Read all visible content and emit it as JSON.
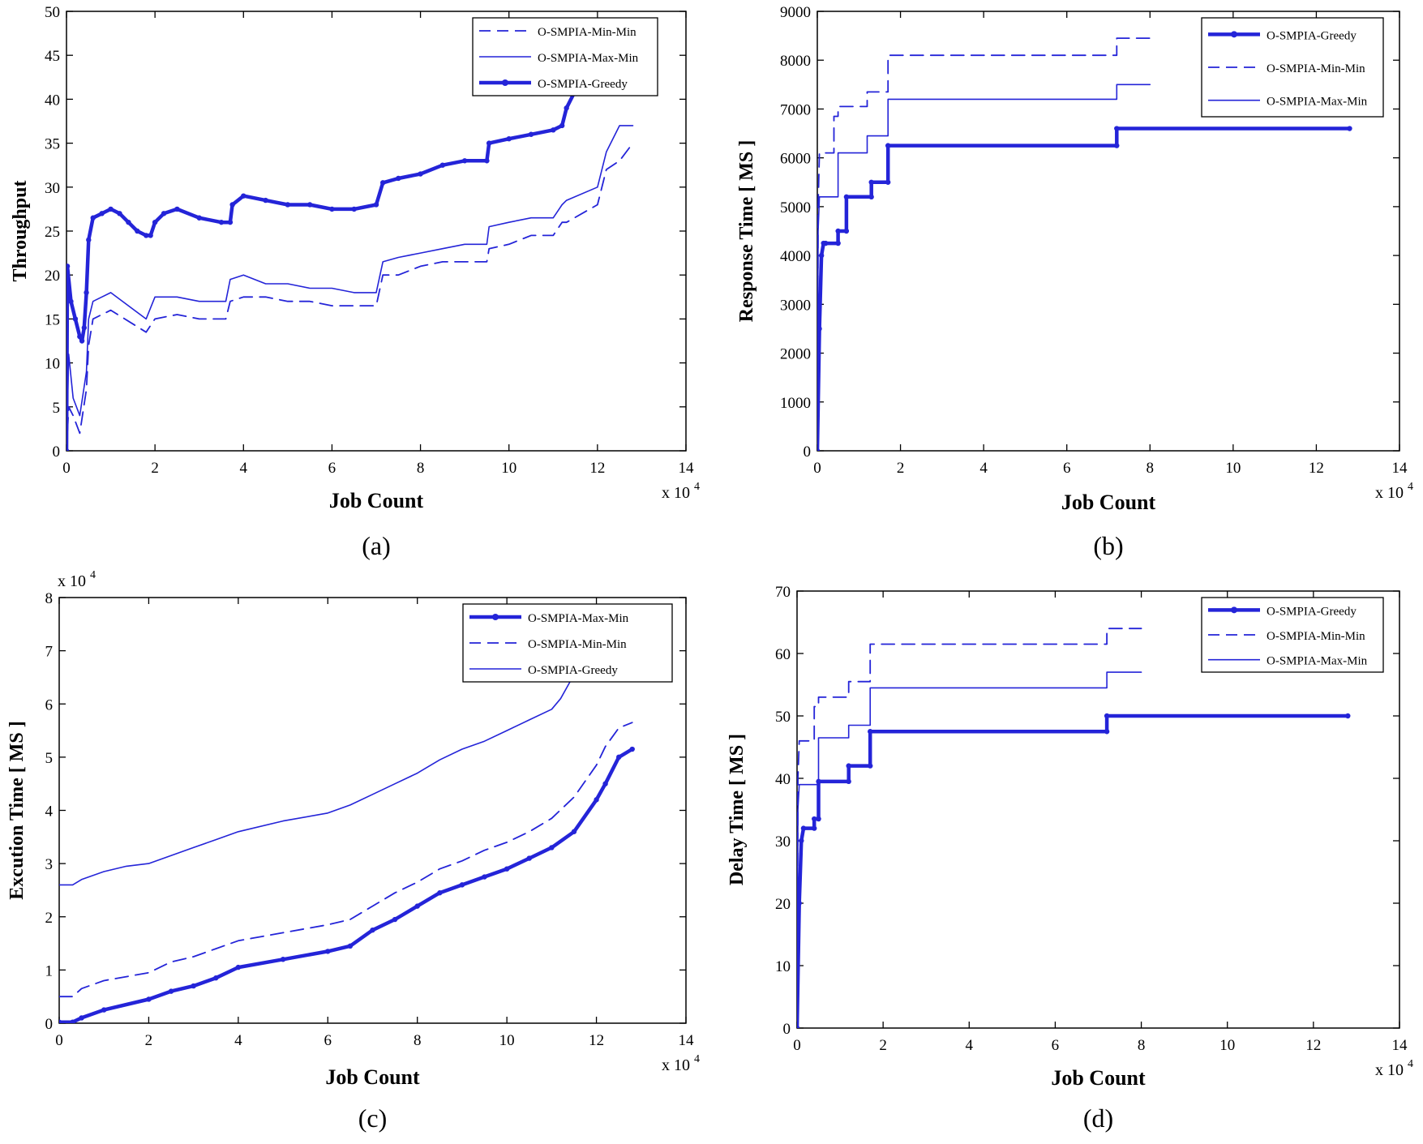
{
  "colors": {
    "line": "#2424d8",
    "axis": "#000000",
    "background": "#ffffff"
  },
  "chart_data": [
    {
      "panel_label": "(a)",
      "type": "line",
      "title": "",
      "xlabel": "Job Count",
      "ylabel": "Throughput",
      "x_exponent": "x 10",
      "x_exponent_power": "4",
      "y_exponent": "",
      "y_exponent_power": "",
      "xlim": [
        0,
        14
      ],
      "ylim": [
        0,
        50
      ],
      "xticks": [
        0,
        2,
        4,
        6,
        8,
        10,
        12,
        14
      ],
      "yticks": [
        0,
        5,
        10,
        15,
        20,
        25,
        30,
        35,
        40,
        45,
        50
      ],
      "legend_position": "top-right",
      "legend": [
        {
          "name": "O-SMPIA-Min-Min",
          "style": "dashed"
        },
        {
          "name": "O-SMPIA-Max-Min",
          "style": "solid"
        },
        {
          "name": "O-SMPIA-Greedy",
          "style": "dotted-thick"
        }
      ],
      "series": [
        {
          "name": "O-SMPIA-Min-Min",
          "style": "dashed",
          "x": [
            0,
            0.05,
            0.15,
            0.3,
            0.45,
            0.5,
            0.6,
            1.0,
            1.8,
            2.0,
            2.5,
            3.0,
            3.6,
            3.7,
            4.0,
            4.5,
            5.0,
            5.5,
            6.0,
            6.5,
            7.0,
            7.15,
            7.5,
            8.0,
            8.5,
            9.0,
            9.5,
            9.55,
            10.0,
            10.5,
            11.0,
            11.2,
            11.3,
            12.0,
            12.2,
            12.5,
            12.8
          ],
          "y": [
            0,
            5,
            4,
            2,
            7,
            12,
            15,
            16,
            13.5,
            15,
            15.5,
            15,
            15,
            17,
            17.5,
            17.5,
            17,
            17,
            16.5,
            16.5,
            16.5,
            20,
            20,
            21,
            21.5,
            21.5,
            21.5,
            23,
            23.5,
            24.5,
            24.5,
            26,
            26,
            28,
            32,
            33,
            35
          ]
        },
        {
          "name": "O-SMPIA-Max-Min",
          "style": "solid",
          "x": [
            0,
            0.05,
            0.15,
            0.3,
            0.45,
            0.5,
            0.6,
            1.0,
            1.8,
            2.0,
            2.5,
            3.0,
            3.6,
            3.7,
            4.0,
            4.5,
            5.0,
            5.5,
            6.0,
            6.5,
            7.0,
            7.15,
            7.5,
            8.0,
            8.5,
            9.0,
            9.5,
            9.55,
            10.0,
            10.5,
            11.0,
            11.2,
            11.3,
            12.0,
            12.2,
            12.5,
            12.8
          ],
          "y": [
            0,
            11,
            6,
            4,
            9,
            15,
            17,
            18,
            15,
            17.5,
            17.5,
            17,
            17,
            19.5,
            20,
            19,
            19,
            18.5,
            18.5,
            18,
            18,
            21.5,
            22,
            22.5,
            23,
            23.5,
            23.5,
            25.5,
            26,
            26.5,
            26.5,
            28,
            28.5,
            30,
            34,
            37,
            37
          ]
        },
        {
          "name": "O-SMPIA-Greedy",
          "style": "dotted-thick",
          "x": [
            0,
            0.02,
            0.1,
            0.2,
            0.3,
            0.35,
            0.4,
            0.45,
            0.5,
            0.6,
            0.8,
            1.0,
            1.2,
            1.4,
            1.6,
            1.8,
            1.9,
            2.0,
            2.2,
            2.5,
            3.0,
            3.5,
            3.7,
            3.75,
            4.0,
            4.5,
            5.0,
            5.5,
            6.0,
            6.5,
            7.0,
            7.15,
            7.5,
            8.0,
            8.5,
            9.0,
            9.5,
            9.55,
            10.0,
            10.5,
            11.0,
            11.2,
            11.3,
            11.5
          ],
          "y": [
            0,
            21,
            17,
            15,
            13,
            12.5,
            14,
            18,
            24,
            26.5,
            27,
            27.5,
            27,
            26,
            25,
            24.5,
            24.5,
            26,
            27,
            27.5,
            26.5,
            26,
            26,
            28,
            29,
            28.5,
            28,
            28,
            27.5,
            27.5,
            28,
            30.5,
            31,
            31.5,
            32.5,
            33,
            33,
            35,
            35.5,
            36,
            36.5,
            37,
            39,
            41
          ]
        }
      ]
    },
    {
      "panel_label": "(b)",
      "type": "line",
      "title": "",
      "xlabel": "Job Count",
      "ylabel": "Response Time [ MS ]",
      "x_exponent": "x 10",
      "x_exponent_power": "4",
      "y_exponent": "",
      "y_exponent_power": "",
      "xlim": [
        0,
        14
      ],
      "ylim": [
        0,
        9000
      ],
      "xticks": [
        0,
        2,
        4,
        6,
        8,
        10,
        12,
        14
      ],
      "yticks": [
        0,
        1000,
        2000,
        3000,
        4000,
        5000,
        6000,
        7000,
        8000,
        9000
      ],
      "legend_position": "top-right",
      "legend": [
        {
          "name": "O-SMPIA-Greedy",
          "style": "dotted-thick"
        },
        {
          "name": "O-SMPIA-Min-Min",
          "style": "dashed"
        },
        {
          "name": "O-SMPIA-Max-Min",
          "style": "solid"
        }
      ],
      "series": [
        {
          "name": "O-SMPIA-Greedy",
          "style": "dotted-thick",
          "x": [
            0,
            0.05,
            0.1,
            0.15,
            0.2,
            0.5,
            0.5,
            0.7,
            0.7,
            1.3,
            1.3,
            1.7,
            1.7,
            7.2,
            7.2,
            12.8
          ],
          "y": [
            0,
            2500,
            4000,
            4250,
            4250,
            4250,
            4500,
            4500,
            5200,
            5200,
            5500,
            5500,
            6250,
            6250,
            6600,
            6600
          ]
        },
        {
          "name": "O-SMPIA-Min-Min",
          "style": "dashed",
          "x": [
            0,
            0.02,
            0.05,
            0.4,
            0.4,
            0.5,
            0.5,
            1.2,
            1.2,
            1.7,
            1.7,
            7.2,
            7.2,
            8.0
          ],
          "y": [
            0,
            5000,
            6100,
            6100,
            6850,
            6850,
            7050,
            7050,
            7350,
            7350,
            8100,
            8100,
            8450,
            8450
          ]
        },
        {
          "name": "O-SMPIA-Max-Min",
          "style": "solid",
          "x": [
            0,
            0.02,
            0.05,
            0.5,
            0.5,
            1.2,
            1.2,
            1.7,
            1.7,
            7.2,
            7.2,
            8.0
          ],
          "y": [
            0,
            4500,
            5200,
            5200,
            6100,
            6100,
            6450,
            6450,
            7200,
            7200,
            7500,
            7500
          ]
        }
      ]
    },
    {
      "panel_label": "(c)",
      "type": "line",
      "title": "",
      "xlabel": "Job Count",
      "ylabel": "Excution Time [ MS ]",
      "x_exponent": "x 10",
      "x_exponent_power": "4",
      "y_exponent": "x 10",
      "y_exponent_power": "4",
      "xlim": [
        0,
        14
      ],
      "ylim": [
        0,
        8
      ],
      "xticks": [
        0,
        2,
        4,
        6,
        8,
        10,
        12,
        14
      ],
      "yticks": [
        0,
        1,
        2,
        3,
        4,
        5,
        6,
        7,
        8
      ],
      "legend_position": "top-right",
      "legend": [
        {
          "name": "O-SMPIA-Max-Min",
          "style": "dotted-thick"
        },
        {
          "name": "O-SMPIA-Min-Min",
          "style": "dashed"
        },
        {
          "name": "O-SMPIA-Greedy",
          "style": "solid"
        }
      ],
      "series": [
        {
          "name": "O-SMPIA-Max-Min",
          "style": "dotted-thick",
          "x": [
            0,
            0.3,
            0.5,
            1.0,
            2.0,
            2.5,
            3.0,
            3.5,
            4.0,
            5.0,
            6.0,
            6.5,
            7.0,
            7.5,
            8.0,
            8.5,
            9.0,
            9.5,
            10.0,
            10.5,
            11.0,
            11.5,
            12.0,
            12.2,
            12.5,
            12.8
          ],
          "y": [
            0.02,
            0.02,
            0.1,
            0.25,
            0.45,
            0.6,
            0.7,
            0.85,
            1.05,
            1.2,
            1.35,
            1.45,
            1.75,
            1.95,
            2.2,
            2.45,
            2.6,
            2.75,
            2.9,
            3.1,
            3.3,
            3.6,
            4.2,
            4.5,
            5.0,
            5.15
          ]
        },
        {
          "name": "O-SMPIA-Min-Min",
          "style": "dashed",
          "x": [
            0,
            0.3,
            0.5,
            1.0,
            2.0,
            2.5,
            3.0,
            3.5,
            4.0,
            5.0,
            6.0,
            6.5,
            7.0,
            7.5,
            8.0,
            8.5,
            9.0,
            9.5,
            10.0,
            10.5,
            11.0,
            11.5,
            12.0,
            12.2,
            12.5,
            12.8
          ],
          "y": [
            0.5,
            0.5,
            0.65,
            0.8,
            0.95,
            1.15,
            1.25,
            1.4,
            1.55,
            1.7,
            1.85,
            1.95,
            2.2,
            2.45,
            2.65,
            2.9,
            3.05,
            3.25,
            3.4,
            3.6,
            3.85,
            4.25,
            4.85,
            5.2,
            5.55,
            5.65
          ]
        },
        {
          "name": "O-SMPIA-Greedy",
          "style": "solid",
          "x": [
            0,
            0.3,
            0.5,
            1.0,
            1.5,
            2.0,
            2.5,
            3.0,
            3.5,
            4.0,
            5.0,
            6.0,
            6.5,
            7.0,
            7.5,
            8.0,
            8.5,
            9.0,
            9.5,
            10.0,
            10.5,
            11.0,
            11.2,
            11.4,
            11.6
          ],
          "y": [
            2.6,
            2.6,
            2.7,
            2.85,
            2.95,
            3.0,
            3.15,
            3.3,
            3.45,
            3.6,
            3.8,
            3.95,
            4.1,
            4.3,
            4.5,
            4.7,
            4.95,
            5.15,
            5.3,
            5.5,
            5.7,
            5.9,
            6.1,
            6.4,
            6.7
          ]
        }
      ]
    },
    {
      "panel_label": "(d)",
      "type": "line",
      "title": "",
      "xlabel": "Job Count",
      "ylabel": "Delay Time [ MS ]",
      "x_exponent": "x 10",
      "x_exponent_power": "4",
      "y_exponent": "",
      "y_exponent_power": "",
      "xlim": [
        0,
        14
      ],
      "ylim": [
        0,
        70
      ],
      "xticks": [
        0,
        2,
        4,
        6,
        8,
        10,
        12,
        14
      ],
      "yticks": [
        0,
        10,
        20,
        30,
        40,
        50,
        60,
        70
      ],
      "legend_position": "top-right",
      "legend": [
        {
          "name": "O-SMPIA-Greedy",
          "style": "dotted-thick"
        },
        {
          "name": "O-SMPIA-Min-Min",
          "style": "dashed"
        },
        {
          "name": "O-SMPIA-Max-Min",
          "style": "solid"
        }
      ],
      "series": [
        {
          "name": "O-SMPIA-Greedy",
          "style": "dotted-thick",
          "x": [
            0,
            0.05,
            0.1,
            0.15,
            0.4,
            0.4,
            0.5,
            0.5,
            1.2,
            1.2,
            1.7,
            1.7,
            7.2,
            7.2,
            12.8
          ],
          "y": [
            0,
            20,
            30,
            32,
            32,
            33.5,
            33.5,
            39.5,
            39.5,
            42,
            42,
            47.5,
            47.5,
            50,
            50
          ]
        },
        {
          "name": "O-SMPIA-Min-Min",
          "style": "dashed",
          "x": [
            0,
            0.02,
            0.05,
            0.4,
            0.4,
            0.5,
            0.5,
            1.2,
            1.2,
            1.7,
            1.7,
            7.2,
            7.2,
            8.0
          ],
          "y": [
            0,
            40,
            46,
            46,
            51.5,
            51.5,
            53,
            53,
            55.5,
            55.5,
            61.5,
            61.5,
            64,
            64
          ]
        },
        {
          "name": "O-SMPIA-Max-Min",
          "style": "solid",
          "x": [
            0,
            0.02,
            0.05,
            0.5,
            0.5,
            1.2,
            1.2,
            1.7,
            1.7,
            7.2,
            7.2,
            8.0
          ],
          "y": [
            0,
            35,
            39,
            39,
            46.5,
            46.5,
            48.5,
            48.5,
            54.5,
            54.5,
            57,
            57
          ]
        }
      ]
    }
  ]
}
